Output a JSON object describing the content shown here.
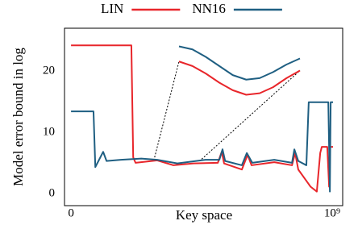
{
  "chart_data": [
    {
      "type": "line",
      "xlabel": "Key space",
      "ylabel": "Model error bound in log",
      "xlim": [
        -25000000.0,
        1040000000.0
      ],
      "ylim": [
        -2,
        27
      ],
      "xticks": [
        {
          "value": 0,
          "label": "0"
        },
        {
          "value": 1000000000.0,
          "label": "10⁹"
        }
      ],
      "yticks": [
        0,
        10,
        20
      ],
      "grid": false,
      "legend": "top",
      "series": [
        {
          "name": "LIN",
          "color": "#e8262b",
          "x": [
            0,
            231000000.0,
            238000000.0,
            247000000.0,
            330000000.0,
            392000000.0,
            469000000.0,
            562000000.0,
            577000000.0,
            586000000.0,
            654000000.0,
            676000000.0,
            691000000.0,
            778000000.0,
            846000000.0,
            858000000.0,
            870000000.0,
            917000000.0,
            941000000.0,
            954000000.0,
            960000000.0,
            981000000.0,
            988000000.0,
            991000000.0,
            1003000000.0
          ],
          "values": [
            24.2,
            24.2,
            5.9,
            5.0,
            5.4,
            4.6,
            4.9,
            5.0,
            6.8,
            4.9,
            3.9,
            6.3,
            4.6,
            5.1,
            4.6,
            6.6,
            3.9,
            1.1,
            0.3,
            6.6,
            7.6,
            7.6,
            1.1,
            7.6,
            7.6
          ]
        },
        {
          "name": "NN16",
          "color": "#1f5f82",
          "x": [
            0,
            86000000.0,
            93000000.0,
            123000000.0,
            136000000.0,
            191000000.0,
            269000000.0,
            330000000.0,
            407000000.0,
            515000000.0,
            568000000.0,
            580000000.0,
            590000000.0,
            654000000.0,
            673000000.0,
            694000000.0,
            778000000.0,
            846000000.0,
            855000000.0,
            870000000.0,
            901000000.0,
            910000000.0,
            985000000.0,
            991000000.0,
            994000000.0,
            1003000000.0
          ],
          "values": [
            13.4,
            13.4,
            4.3,
            6.8,
            5.3,
            5.5,
            5.7,
            5.5,
            4.9,
            5.5,
            5.5,
            7.2,
            5.3,
            4.6,
            6.6,
            5.0,
            5.5,
            5.0,
            7.2,
            5.3,
            4.6,
            14.9,
            14.9,
            0.3,
            14.9,
            14.9
          ]
        }
      ]
    },
    {
      "type": "line",
      "xlim": [
        320000000.0,
        500000000.0
      ],
      "ylim": [
        4.2,
        6.2
      ],
      "series": [
        {
          "color": "#e8262b",
          "x": [
            320000000.0,
            340000000.0,
            360000000.0,
            380000000.0,
            400000000.0,
            420000000.0,
            440000000.0,
            460000000.0,
            480000000.0,
            500000000.0
          ],
          "values": [
            5.5,
            5.35,
            5.1,
            4.8,
            4.55,
            4.4,
            4.45,
            4.65,
            4.95,
            5.2
          ]
        },
        {
          "color": "#1f5f82",
          "x": [
            320000000.0,
            340000000.0,
            360000000.0,
            380000000.0,
            400000000.0,
            420000000.0,
            440000000.0,
            460000000.0,
            480000000.0,
            500000000.0
          ],
          "values": [
            6.0,
            5.9,
            5.65,
            5.35,
            5.05,
            4.9,
            4.95,
            5.15,
            5.4,
            5.6
          ]
        }
      ]
    }
  ]
}
